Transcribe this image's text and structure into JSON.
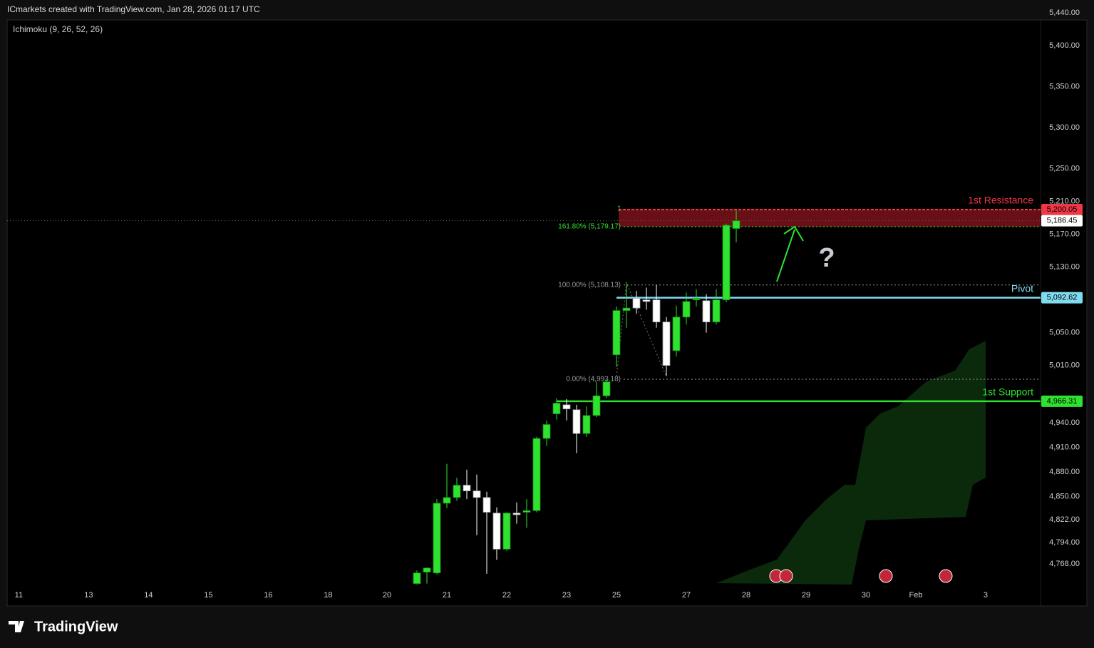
{
  "header": {
    "title": "ICmarkets created with TradingView.com, Jan 28, 2026 01:17 UTC"
  },
  "footer": {
    "brand": "TradingView"
  },
  "chart_data": {
    "type": "candlestick",
    "indicator": "Ichimoku (9, 26, 52, 26)",
    "x": [
      0,
      1,
      2,
      3,
      4,
      5,
      6,
      7,
      8,
      9,
      10,
      11,
      12,
      13,
      14,
      15,
      16,
      17,
      18,
      19,
      20,
      21,
      22,
      23,
      24,
      25,
      26,
      27,
      28,
      29,
      30,
      31,
      32
    ],
    "open": [
      4744,
      4758,
      4757,
      4842,
      4849,
      4864,
      4857,
      4849,
      4830,
      4786,
      4830,
      4831,
      4833,
      4921,
      4951,
      4962,
      4956,
      4927,
      4949,
      4973,
      5023,
      5077,
      5092,
      5090,
      5090,
      5063,
      5028,
      5069,
      5090,
      5089,
      5063,
      5090,
      5177
    ],
    "high": [
      4760,
      4764,
      4847,
      4890,
      4873,
      4883,
      4877,
      4856,
      4837,
      4831,
      4843,
      4847,
      4923,
      4943,
      4970,
      4969,
      4962,
      4960,
      4990,
      4993,
      5082,
      5112,
      5101,
      5105,
      5108,
      5069,
      5083,
      5099,
      5103,
      5097,
      5103,
      5183,
      5199
    ],
    "low": [
      4743,
      4744,
      4755,
      4836,
      4845,
      4847,
      4803,
      4756,
      4773,
      4784,
      4817,
      4812,
      4831,
      4912,
      4944,
      4943,
      4903,
      4923,
      4947,
      4970,
      5008,
      5056,
      5073,
      5078,
      5056,
      4997,
      5021,
      5060,
      5082,
      5050,
      5060,
      5087,
      5160
    ],
    "close": [
      4757,
      4763,
      4842,
      4849,
      4864,
      4857,
      4849,
      4831,
      4786,
      4830,
      4828,
      4833,
      4921,
      4938,
      4964,
      4957,
      4927,
      4949,
      4973,
      4990,
      5077,
      5080,
      5080,
      5088,
      5063,
      5010,
      5069,
      5088,
      5092,
      5063,
      5090,
      5181,
      5186.45
    ],
    "up_color": "#2fe22f",
    "down_color": "#ffffff",
    "xlim": [
      -41.07,
      62.5
    ],
    "xticks": [
      {
        "value": -39.9,
        "label": "11"
      },
      {
        "value": -32.9,
        "label": "13"
      },
      {
        "value": -26.9,
        "label": "14"
      },
      {
        "value": -20.9,
        "label": "15"
      },
      {
        "value": -14.9,
        "label": "16"
      },
      {
        "value": -8.9,
        "label": "18"
      },
      {
        "value": -3,
        "label": "20"
      },
      {
        "value": 3,
        "label": "21"
      },
      {
        "value": 9,
        "label": "22"
      },
      {
        "value": 15,
        "label": "23"
      },
      {
        "value": 20,
        "label": "25"
      },
      {
        "value": 27,
        "label": "27"
      },
      {
        "value": 33,
        "label": "28"
      },
      {
        "value": 39,
        "label": "29"
      },
      {
        "value": 45,
        "label": "30"
      },
      {
        "value": 50,
        "label": "Feb"
      },
      {
        "value": 57,
        "label": "3"
      }
    ],
    "ylim": [
      4735,
      5440
    ],
    "yticks": [
      {
        "value": 5440,
        "label": "5,440.00"
      },
      {
        "value": 5400,
        "label": "5,400.00"
      },
      {
        "value": 5350,
        "label": "5,350.00"
      },
      {
        "value": 5300,
        "label": "5,300.00"
      },
      {
        "value": 5250,
        "label": "5,250.00"
      },
      {
        "value": 5210,
        "label": "5,210.00"
      },
      {
        "value": 5170,
        "label": "5,170.00"
      },
      {
        "value": 5130,
        "label": "5,130.00"
      },
      {
        "value": 5050,
        "label": "5,050.00"
      },
      {
        "value": 5010,
        "label": "5,010.00"
      },
      {
        "value": 4940,
        "label": "4,940.00"
      },
      {
        "value": 4910,
        "label": "4,910.00"
      },
      {
        "value": 4880,
        "label": "4,880.00"
      },
      {
        "value": 4850,
        "label": "4,850.00"
      },
      {
        "value": 4822,
        "label": "4,822.00"
      },
      {
        "value": 4794,
        "label": "4,794.00"
      },
      {
        "value": 4768,
        "label": "4,768.00"
      }
    ],
    "levels": [
      {
        "name": "1st Resistance",
        "value": 5200.05,
        "label": "5,200.05",
        "color": "#f23645"
      },
      {
        "name": "Pivot",
        "value": 5092.62,
        "label": "5,092.62",
        "color": "#7fdcf0"
      },
      {
        "name": "1st Support",
        "value": 4966.31,
        "label": "4,966.31",
        "color": "#2fe22f"
      }
    ],
    "last_price": {
      "value": 5186.45,
      "label": "5,186.45"
    },
    "fib": [
      {
        "value": 5179.17,
        "label": "161.80% (5,179.17)"
      },
      {
        "value": 5108.13,
        "label": "100.00% (5,108.13)"
      },
      {
        "value": 4993.18,
        "label": "0.00% (4,993.18)"
      }
    ],
    "fib_top_label": "1",
    "question": "?"
  }
}
